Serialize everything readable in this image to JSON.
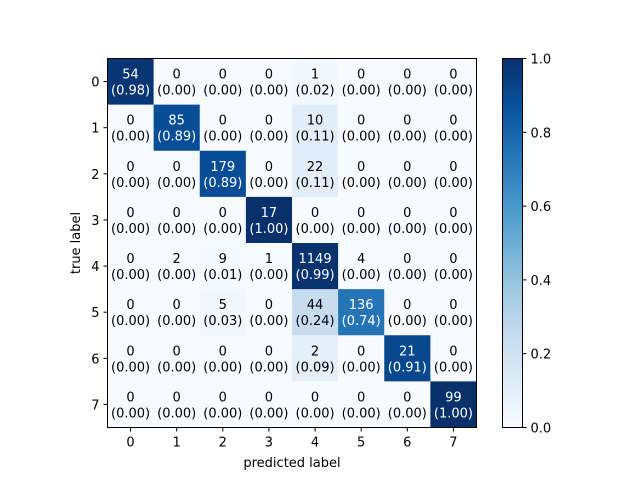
{
  "chart_data": {
    "type": "heatmap",
    "title": "",
    "xlabel": "predicted label",
    "ylabel": "true label",
    "x_categories": [
      "0",
      "1",
      "2",
      "3",
      "4",
      "5",
      "6",
      "7"
    ],
    "y_categories": [
      "0",
      "1",
      "2",
      "3",
      "4",
      "5",
      "6",
      "7"
    ],
    "counts": [
      [
        54,
        0,
        0,
        0,
        1,
        0,
        0,
        0
      ],
      [
        0,
        85,
        0,
        0,
        10,
        0,
        0,
        0
      ],
      [
        0,
        0,
        179,
        0,
        22,
        0,
        0,
        0
      ],
      [
        0,
        0,
        0,
        17,
        0,
        0,
        0,
        0
      ],
      [
        0,
        2,
        9,
        1,
        1149,
        4,
        0,
        0
      ],
      [
        0,
        0,
        5,
        0,
        44,
        136,
        0,
        0
      ],
      [
        0,
        0,
        0,
        0,
        2,
        0,
        21,
        0
      ],
      [
        0,
        0,
        0,
        0,
        0,
        0,
        0,
        99
      ]
    ],
    "normalized": [
      [
        "0.98",
        "0.00",
        "0.00",
        "0.00",
        "0.02",
        "0.00",
        "0.00",
        "0.00"
      ],
      [
        "0.00",
        "0.89",
        "0.00",
        "0.00",
        "0.11",
        "0.00",
        "0.00",
        "0.00"
      ],
      [
        "0.00",
        "0.00",
        "0.89",
        "0.00",
        "0.11",
        "0.00",
        "0.00",
        "0.00"
      ],
      [
        "0.00",
        "0.00",
        "0.00",
        "1.00",
        "0.00",
        "0.00",
        "0.00",
        "0.00"
      ],
      [
        "0.00",
        "0.00",
        "0.01",
        "0.00",
        "0.99",
        "0.00",
        "0.00",
        "0.00"
      ],
      [
        "0.00",
        "0.00",
        "0.03",
        "0.00",
        "0.24",
        "0.74",
        "0.00",
        "0.00"
      ],
      [
        "0.00",
        "0.00",
        "0.00",
        "0.00",
        "0.09",
        "0.00",
        "0.91",
        "0.00"
      ],
      [
        "0.00",
        "0.00",
        "0.00",
        "0.00",
        "0.00",
        "0.00",
        "0.00",
        "1.00"
      ]
    ],
    "colormap": "Blues",
    "colorbar": {
      "range": [
        0.0,
        1.0
      ],
      "ticks": [
        "0.0",
        "0.2",
        "0.4",
        "0.6",
        "0.8",
        "1.0"
      ]
    },
    "grid": false,
    "legend": "none"
  }
}
